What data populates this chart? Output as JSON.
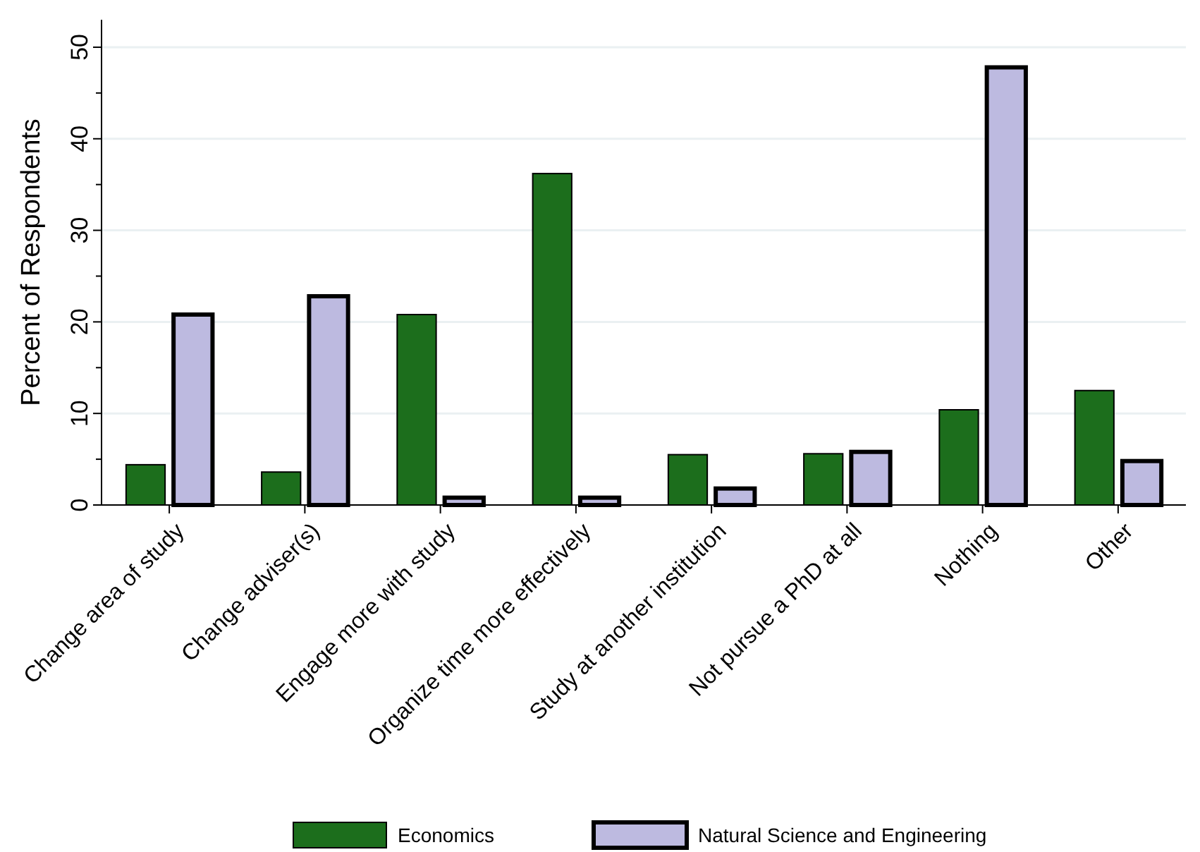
{
  "chart_data": {
    "type": "bar",
    "ylabel": "Percent of Respondents",
    "categories": [
      "Change area of study",
      "Change adviser(s)",
      "Engage more with study",
      "Organize time more effectively",
      "Study at another institution",
      "Not pursue a PhD at all",
      "Nothing",
      "Other"
    ],
    "series": [
      {
        "name": "Economics",
        "color": "#1c6e1c",
        "values": [
          4.4,
          3.6,
          20.8,
          36.2,
          5.5,
          5.6,
          10.4,
          12.5
        ]
      },
      {
        "name": "Natural Science and Engineering",
        "color": "#bdbae0",
        "values": [
          20.8,
          22.8,
          0.8,
          0.8,
          1.8,
          5.8,
          47.8,
          4.8
        ]
      }
    ],
    "ylim": [
      0,
      53
    ],
    "yticks": [
      0,
      {
        "value": 5,
        "label": null
      },
      10,
      {
        "value": 15,
        "label": null
      },
      20,
      {
        "value": 25,
        "label": null
      },
      30,
      {
        "value": 35,
        "label": null
      },
      40,
      {
        "value": 45,
        "label": null
      },
      50
    ],
    "grid": "y",
    "legend": "bottom"
  }
}
